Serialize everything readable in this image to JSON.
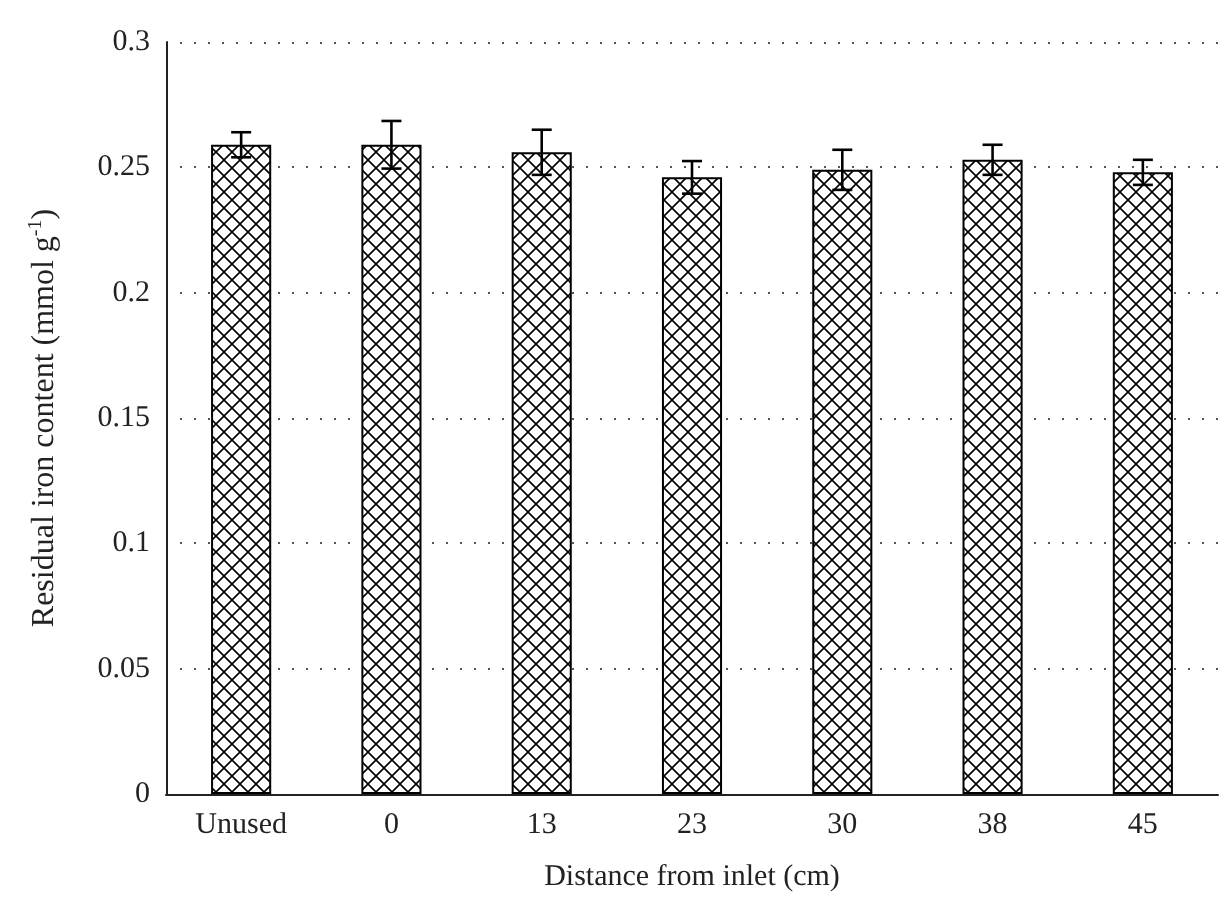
{
  "chart_data": {
    "type": "bar",
    "xlabel": "Distance from inlet (cm)",
    "ylabel": "Residual iron content (mmol g$^{-1}$)",
    "categories": [
      "Unused",
      "0",
      "13",
      "23",
      "30",
      "38",
      "45"
    ],
    "values": [
      0.259,
      0.259,
      0.256,
      0.246,
      0.249,
      0.253,
      0.248
    ],
    "errors": [
      0.005,
      0.0095,
      0.009,
      0.0065,
      0.008,
      0.006,
      0.005
    ],
    "color": "#000000",
    "ylim": [
      0,
      0.3
    ],
    "yticks": [
      0,
      0.05,
      0.1,
      0.15,
      0.2,
      0.25,
      0.3
    ],
    "grid": "y"
  }
}
